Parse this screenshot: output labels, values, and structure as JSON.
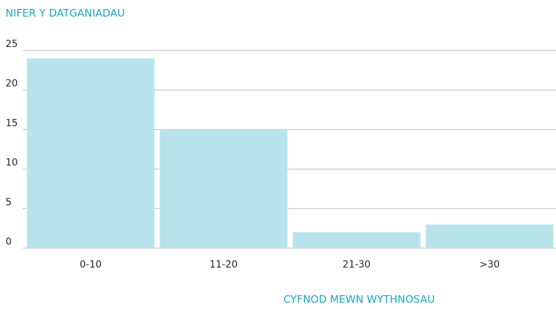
{
  "chart_data": {
    "type": "bar",
    "title": "NIFER Y DATGANIADAU",
    "x_label": "CYFNOD MEWN WYTHNOSAU",
    "categories": [
      "0-10",
      "11-20",
      "21-30",
      ">30"
    ],
    "values": [
      24,
      15,
      2,
      3
    ],
    "color": "#b9e3ea",
    "ylim": [
      0,
      25
    ],
    "yticks": [
      0,
      5,
      10,
      15,
      20,
      25
    ],
    "grid": true
  }
}
